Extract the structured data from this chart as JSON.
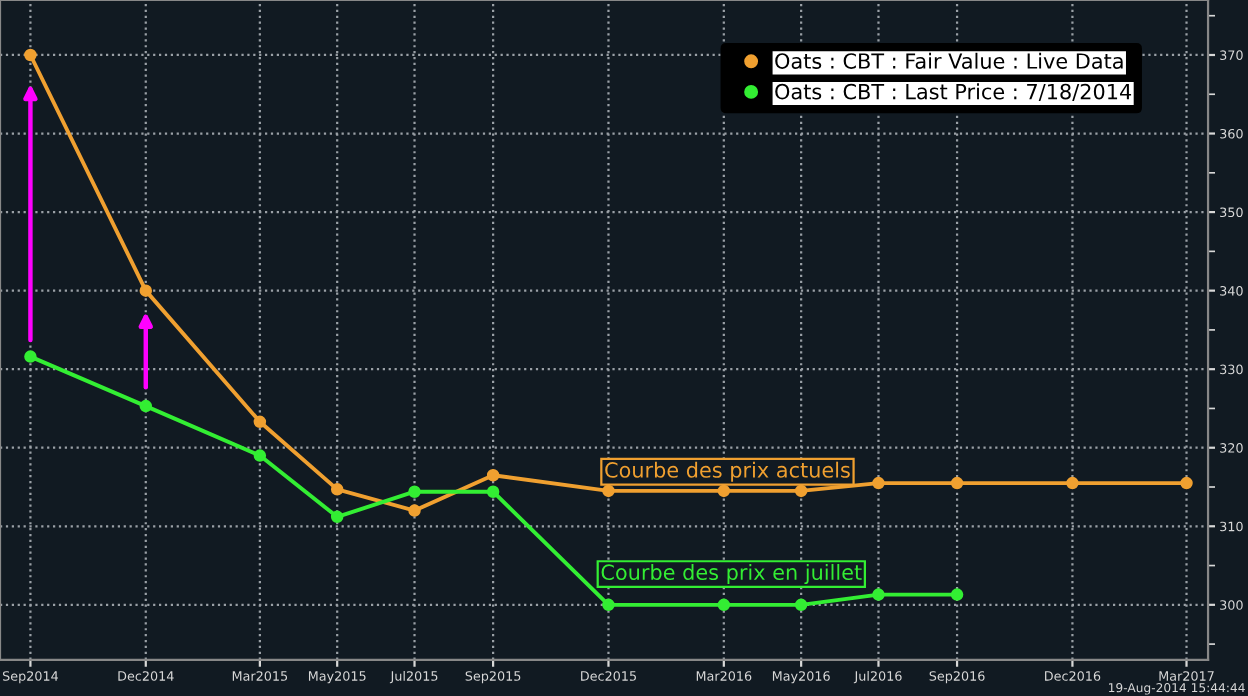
{
  "chart_data": {
    "type": "line",
    "x": [
      "2014-09",
      "2014-12",
      "2015-03",
      "2015-05",
      "2015-07",
      "2015-09",
      "2015-12",
      "2016-03",
      "2016-05",
      "2016-07",
      "2016-09",
      "2016-12",
      "2017-03"
    ],
    "series": [
      {
        "name": "Oats : CBT : Fair Value : Live Data",
        "color": "#f0a030",
        "values": [
          370,
          340,
          323.3,
          314.7,
          312,
          316.5,
          314.5,
          314.5,
          314.5,
          315.5,
          315.5,
          315.5,
          315.5
        ]
      },
      {
        "name": "Oats : CBT : Last Price : 7/18/2014",
        "color": "#33ee33",
        "values": [
          331.6,
          325.3,
          319,
          311.2,
          314.4,
          314.4,
          300,
          300,
          300,
          301.3,
          301.3,
          null,
          null
        ]
      }
    ],
    "xlim": [
      "2014-08-08",
      "2017-03-18"
    ],
    "xticks": [
      {
        "value": "2014-09",
        "label": "Sep2014"
      },
      {
        "value": "2014-12",
        "label": "Dec2014"
      },
      {
        "value": "2015-03",
        "label": "Mar2015"
      },
      {
        "value": "2015-05",
        "label": "May2015"
      },
      {
        "value": "2015-07",
        "label": "Jul2015"
      },
      {
        "value": "2015-09",
        "label": "Sep2015"
      },
      {
        "value": "2015-12",
        "label": "Dec2015"
      },
      {
        "value": "2016-03",
        "label": "Mar2016"
      },
      {
        "value": "2016-05",
        "label": "May2016"
      },
      {
        "value": "2016-07",
        "label": "Jul2016"
      },
      {
        "value": "2016-09",
        "label": "Sep2016"
      },
      {
        "value": "2016-12",
        "label": "Dec2016"
      },
      {
        "value": "2017-03",
        "label": "Mar2017"
      }
    ],
    "ylim": [
      293,
      377
    ],
    "yticks": [
      {
        "value": 295,
        "label": null
      },
      300,
      {
        "value": 305,
        "label": null
      },
      310,
      {
        "value": 315,
        "label": null
      },
      320,
      {
        "value": 325,
        "label": null
      },
      330,
      {
        "value": 335,
        "label": null
      },
      340,
      {
        "value": 345,
        "label": null
      },
      350,
      {
        "value": 355,
        "label": null
      },
      360,
      {
        "value": 365,
        "label": null
      },
      370,
      {
        "value": 375,
        "label": null
      }
    ],
    "annotations": [
      "Courbe des prix actuels",
      "Courbe des prix en juillet",
      "19-Aug-2014 15:44:44"
    ],
    "grid": true,
    "legend": "top right",
    "marker": "circle",
    "line_style": "solid"
  }
}
